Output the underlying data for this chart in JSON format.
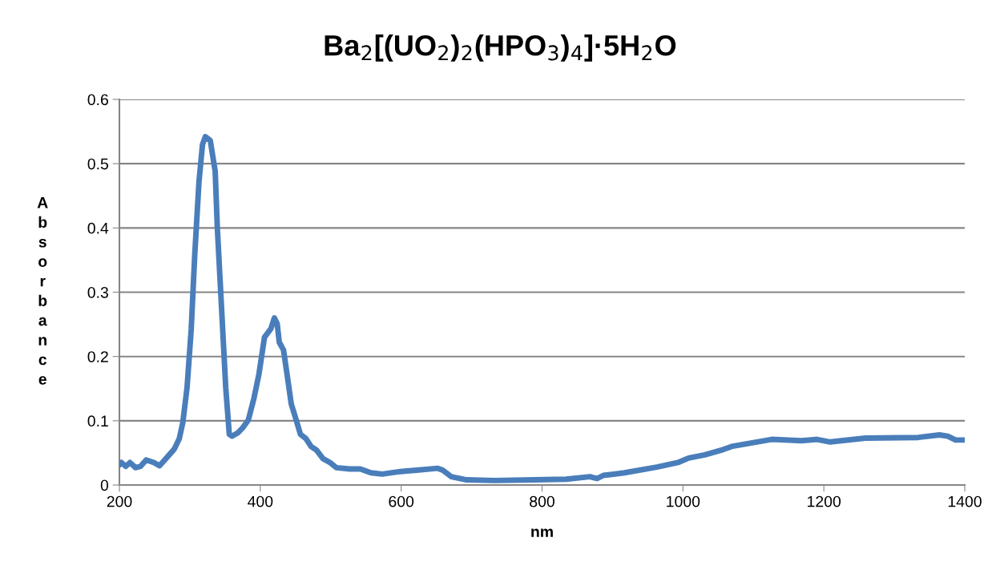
{
  "chart_data": {
    "type": "line",
    "title": "Ba$_{2}$[(UO$_{2}$)$_{2}$(HPO$_{3}$)$_{4}$]·5H$_{2}$O",
    "xlabel": "nm",
    "ylabel": "Absorbance",
    "series": [
      {
        "color": "#4a7ebb",
        "x": [
          200,
          203,
          209,
          215,
          223,
          230,
          238,
          249,
          257,
          266,
          278,
          285,
          290,
          296,
          302,
          307,
          313,
          318,
          322,
          329,
          336,
          339,
          345,
          351,
          356,
          360,
          368,
          375,
          383,
          391,
          398,
          406,
          415,
          420,
          424,
          427,
          433,
          438,
          444,
          451,
          457,
          465,
          472,
          480,
          489,
          499,
          508,
          527,
          542,
          557,
          573,
          599,
          622,
          652,
          659,
          671,
          693,
          732,
          789,
          834,
          868,
          878,
          887,
          917,
          963,
          993,
          1008,
          1031,
          1054,
          1069,
          1126,
          1168,
          1190,
          1209,
          1259,
          1334,
          1364,
          1376,
          1387,
          1400
        ],
        "values": [
          0.031,
          0.035,
          0.029,
          0.035,
          0.027,
          0.029,
          0.039,
          0.035,
          0.03,
          0.041,
          0.056,
          0.072,
          0.097,
          0.151,
          0.243,
          0.359,
          0.472,
          0.53,
          0.542,
          0.536,
          0.488,
          0.401,
          0.276,
          0.151,
          0.079,
          0.076,
          0.081,
          0.089,
          0.101,
          0.135,
          0.172,
          0.23,
          0.243,
          0.26,
          0.251,
          0.222,
          0.21,
          0.172,
          0.126,
          0.101,
          0.079,
          0.072,
          0.06,
          0.054,
          0.041,
          0.035,
          0.027,
          0.025,
          0.025,
          0.019,
          0.017,
          0.021,
          0.023,
          0.026,
          0.023,
          0.013,
          0.008,
          0.007,
          0.008,
          0.009,
          0.013,
          0.01,
          0.015,
          0.019,
          0.028,
          0.035,
          0.042,
          0.047,
          0.054,
          0.06,
          0.071,
          0.069,
          0.071,
          0.067,
          0.073,
          0.074,
          0.078,
          0.076,
          0.07,
          0.07
        ]
      }
    ],
    "xlim": [
      200,
      1400
    ],
    "xticks": [
      200,
      400,
      600,
      800,
      1000,
      1200,
      1400
    ],
    "ylim": [
      0,
      0.6
    ],
    "yticks": [
      0,
      0.1,
      0.2,
      0.3,
      0.4,
      0.5,
      0.6
    ],
    "grid": "y",
    "legend": false
  }
}
